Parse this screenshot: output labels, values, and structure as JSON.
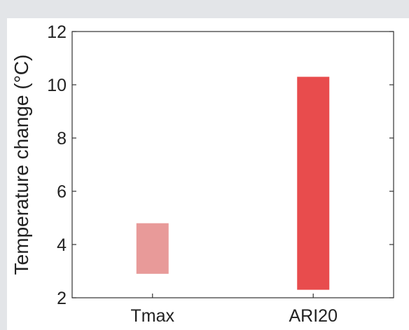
{
  "chart_data": {
    "type": "bar",
    "subtype": "floating-range",
    "categories": [
      "Tmax",
      "ARI20"
    ],
    "series": [
      {
        "ranges": [
          [
            2.9,
            4.8
          ],
          [
            2.3,
            10.3
          ]
        ],
        "colors": [
          "#e89a99",
          "#e84c4d"
        ]
      }
    ],
    "ylabel": "Temperature change (°C)",
    "ylim": [
      2,
      12
    ],
    "yticks": [
      "2",
      "4",
      "6",
      "8",
      "10",
      "12"
    ],
    "grid": false,
    "legend": "none"
  },
  "colors": {
    "background": "#e3e5e8",
    "panel": "#ffffff",
    "axis": "#333333"
  }
}
